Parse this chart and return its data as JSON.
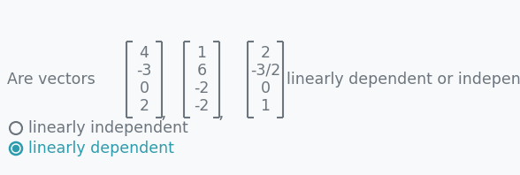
{
  "background_color": "#f8f9fa",
  "text_color": "#6c757d",
  "teal_color": "#2d9cad",
  "vector1": [
    "4",
    "-3",
    "0",
    "2"
  ],
  "vector2": [
    "1",
    "6",
    "-2",
    "-2"
  ],
  "vector3": [
    "2",
    "-3/2",
    "0",
    "1"
  ],
  "prefix_text": "Are vectors",
  "suffix_text": "linearly dependent or independent?",
  "option1": "linearly independent",
  "option2": "linearly dependent",
  "font_size_main": 12.5,
  "font_size_option": 12.5
}
